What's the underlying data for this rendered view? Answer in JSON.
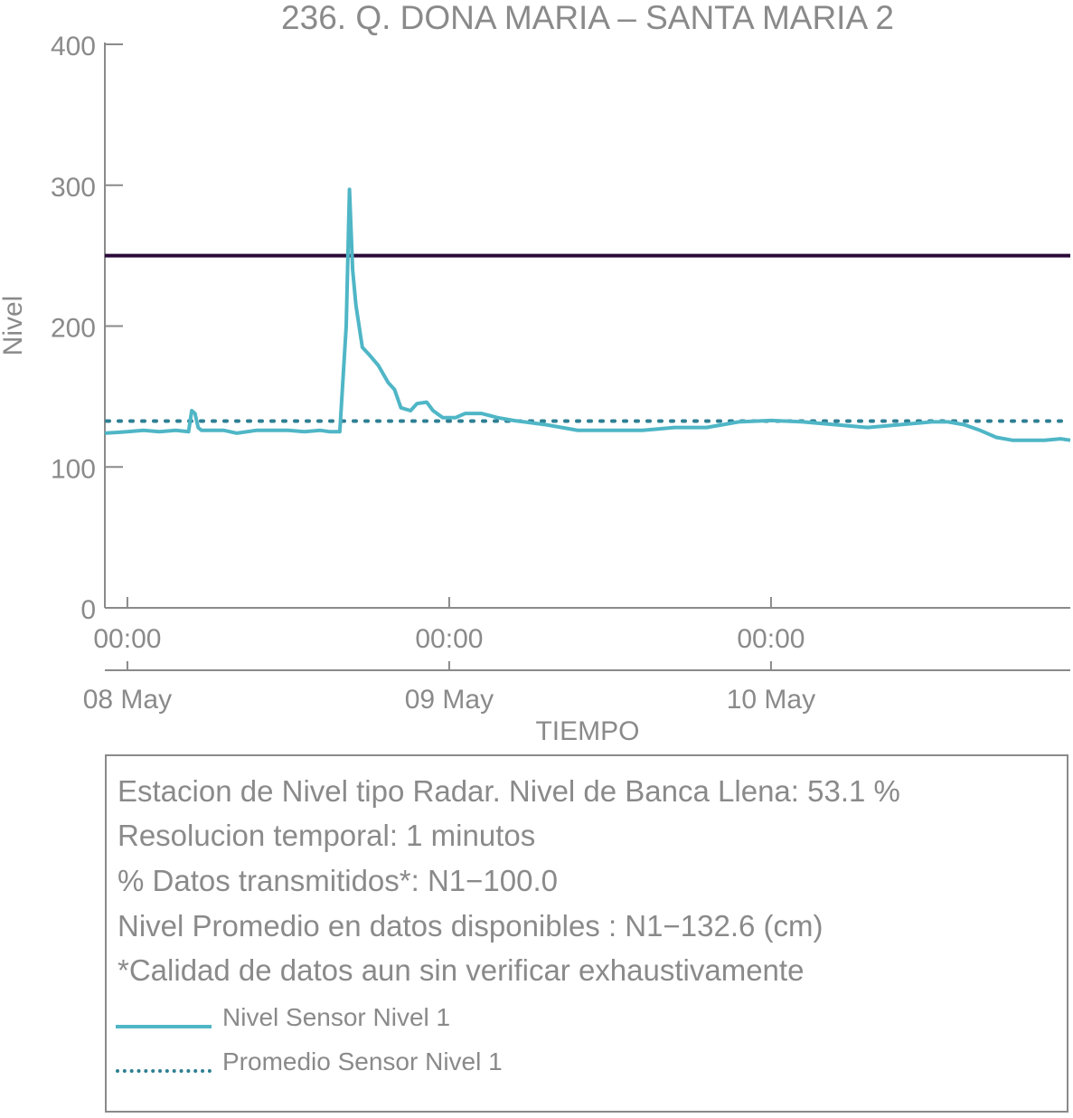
{
  "colors": {
    "axis": "#8a8a8a",
    "level_series": "#4fb6c6",
    "mean_series": "#2e7f93",
    "threshold": "#2a0a3a"
  },
  "chart_data": {
    "type": "line",
    "title": "236. Q. DONA MARIA – SANTA MARIA 2",
    "xlabel": "TIEMPO",
    "ylabel": "Nivel",
    "ylim": [
      0,
      400
    ],
    "yticks": [
      "0",
      "100",
      "200",
      "300",
      "400"
    ],
    "xticks": [
      {
        "time": "00:00",
        "date": "08 May"
      },
      {
        "time": "00:00",
        "date": "09 May"
      },
      {
        "time": "00:00",
        "date": "10 May"
      }
    ],
    "x_unit": "days since 08 May 00:00",
    "xlim": [
      -0.07,
      2.93
    ],
    "threshold_line": 250,
    "series": [
      {
        "name": "Nivel Sensor Nivel 1",
        "style": "solid",
        "x": [
          -0.07,
          0.0,
          0.05,
          0.1,
          0.15,
          0.19,
          0.2,
          0.21,
          0.22,
          0.23,
          0.26,
          0.3,
          0.34,
          0.4,
          0.45,
          0.5,
          0.55,
          0.6,
          0.63,
          0.66,
          0.68,
          0.69,
          0.7,
          0.71,
          0.73,
          0.75,
          0.78,
          0.81,
          0.83,
          0.85,
          0.88,
          0.9,
          0.93,
          0.95,
          0.98,
          1.02,
          1.05,
          1.1,
          1.15,
          1.2,
          1.3,
          1.4,
          1.5,
          1.6,
          1.65,
          1.7,
          1.75,
          1.8,
          1.9,
          2.0,
          2.1,
          2.2,
          2.3,
          2.4,
          2.5,
          2.55,
          2.6,
          2.65,
          2.7,
          2.75,
          2.8,
          2.85,
          2.9,
          2.93
        ],
        "y": [
          124,
          125,
          126,
          125,
          126,
          125,
          140,
          138,
          128,
          126,
          126,
          126,
          124,
          126,
          126,
          126,
          125,
          126,
          125,
          125,
          200,
          297,
          240,
          215,
          185,
          180,
          172,
          160,
          155,
          142,
          140,
          145,
          146,
          140,
          135,
          135,
          138,
          138,
          135,
          133,
          130,
          126,
          126,
          126,
          127,
          128,
          128,
          128,
          132,
          133,
          132,
          130,
          128,
          130,
          132,
          132,
          130,
          126,
          121,
          119,
          119,
          119,
          120,
          119
        ]
      },
      {
        "name": "Promedio Sensor Nivel 1",
        "style": "dotted",
        "constant": 132.6
      }
    ]
  },
  "info": {
    "line1": "Estacion de Nivel tipo Radar. Nivel de Banca Llena: 53.1 %",
    "line2": "Resolucion temporal: 1 minutos",
    "line3": "% Datos transmitidos*: N1−100.0",
    "line4": "Nivel Promedio en datos disponibles : N1−132.6 (cm)",
    "line5": "*Calidad de datos aun sin verificar exhaustivamente"
  },
  "legend": {
    "level_label": "Nivel Sensor Nivel 1",
    "mean_label": "Promedio Sensor Nivel 1"
  }
}
